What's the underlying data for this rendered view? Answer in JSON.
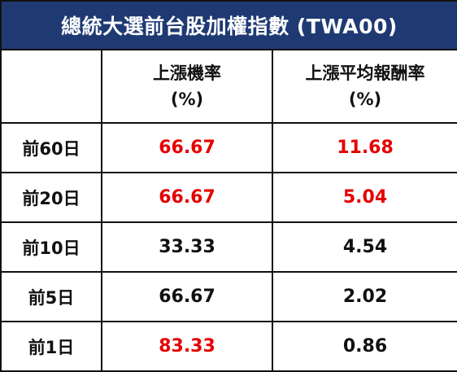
{
  "title": "總統大選前台股加權指數 (TWA00)",
  "headers": {
    "col0": "",
    "col1_line1": "上漲機率",
    "col1_line2": "(%)",
    "col2_line1": "上漲平均報酬率",
    "col2_line2": "(%)"
  },
  "rows": [
    {
      "period": "前60日",
      "prob": "66.67",
      "prob_color": "red",
      "ret": "11.68",
      "ret_color": "red"
    },
    {
      "period": "前20日",
      "prob": "66.67",
      "prob_color": "red",
      "ret": "5.04",
      "ret_color": "red"
    },
    {
      "period": "前10日",
      "prob": "33.33",
      "prob_color": "black",
      "ret": "4.54",
      "ret_color": "black"
    },
    {
      "period": "前5日",
      "prob": "66.67",
      "prob_color": "black",
      "ret": "2.02",
      "ret_color": "black"
    },
    {
      "period": "前1日",
      "prob": "83.33",
      "prob_color": "red",
      "ret": "0.86",
      "ret_color": "black"
    }
  ],
  "colors": {
    "title_bg": "#1f3a73",
    "highlight": "#e60000",
    "text": "#111111"
  }
}
